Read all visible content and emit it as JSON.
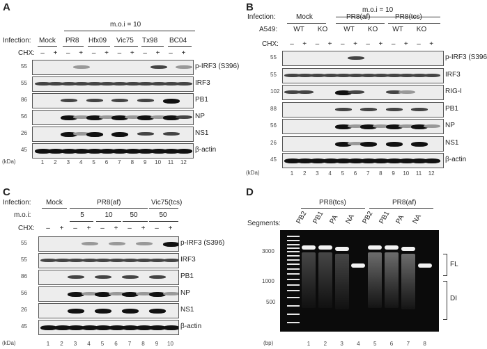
{
  "panel_a": {
    "letter": "A",
    "moi_header": "m.o.i = 10",
    "infection_label": "Infection:",
    "groups": [
      "Mock",
      "PR8",
      "Hfx09",
      "Vic75",
      "Tx98",
      "BC04"
    ],
    "chx_label": "CHX:",
    "chx_minus": "–",
    "chx_plus": "+",
    "kda_label": "(kDa)",
    "mw": [
      "55",
      "55",
      "86",
      "56",
      "26",
      "45"
    ],
    "blots": [
      "p-IRF3 (S396)",
      "IRF3",
      "PB1",
      "NP",
      "NS1",
      "β-actin"
    ],
    "lanes": [
      "1",
      "2",
      "3",
      "4",
      "5",
      "6",
      "7",
      "8",
      "9",
      "10",
      "11",
      "12"
    ]
  },
  "panel_b": {
    "letter": "B",
    "moi_header": "m.o.i = 10",
    "infection_label": "Infection:",
    "groups": [
      "Mock",
      "PR8(af)",
      "PR8(tcs)"
    ],
    "a549_label": "A549:",
    "genotypes": [
      "WT",
      "KO",
      "WT",
      "KO",
      "WT",
      "KO"
    ],
    "chx_label": "CHX:",
    "chx_minus": "–",
    "chx_plus": "+",
    "kda_label": "(kDa)",
    "mw": [
      "55",
      "55",
      "102",
      "88",
      "56",
      "26",
      "45"
    ],
    "blots": [
      "p-IRF3 (S396)",
      "IRF3",
      "RIG-I",
      "PB1",
      "NP",
      "NS1",
      "β-actin"
    ],
    "lanes": [
      "1",
      "2",
      "3",
      "4",
      "5",
      "6",
      "7",
      "8",
      "9",
      "10",
      "11",
      "12"
    ]
  },
  "panel_c": {
    "letter": "C",
    "infection_label": "Infection:",
    "groups": [
      "Mock",
      "PR8(af)",
      "Vic75(tcs)"
    ],
    "moi_label": "m.o.i:",
    "moi_values": [
      "5",
      "10",
      "50",
      "50"
    ],
    "chx_label": "CHX:",
    "chx_minus": "–",
    "chx_plus": "+",
    "kda_label": "(kDa)",
    "mw": [
      "55",
      "55",
      "86",
      "56",
      "26",
      "45"
    ],
    "blots": [
      "p-IRF3 (S396)",
      "IRF3",
      "PB1",
      "NP",
      "NS1",
      "β-actin"
    ],
    "lanes": [
      "1",
      "2",
      "3",
      "4",
      "5",
      "6",
      "7",
      "8",
      "9",
      "10"
    ]
  },
  "panel_d": {
    "letter": "D",
    "groups": [
      "PR8(tcs)",
      "PR8(af)"
    ],
    "segments_label": "Segments:",
    "segments": [
      "PB2",
      "PB1",
      "PA",
      "NA",
      "PB2",
      "PB1",
      "PA",
      "NA"
    ],
    "bp_markers": [
      "3000",
      "1000",
      "500"
    ],
    "bp_label": "(bp)",
    "lanes": [
      "1",
      "2",
      "3",
      "4",
      "5",
      "6",
      "7",
      "8"
    ],
    "fl_label": "FL",
    "di_label": "DI"
  }
}
